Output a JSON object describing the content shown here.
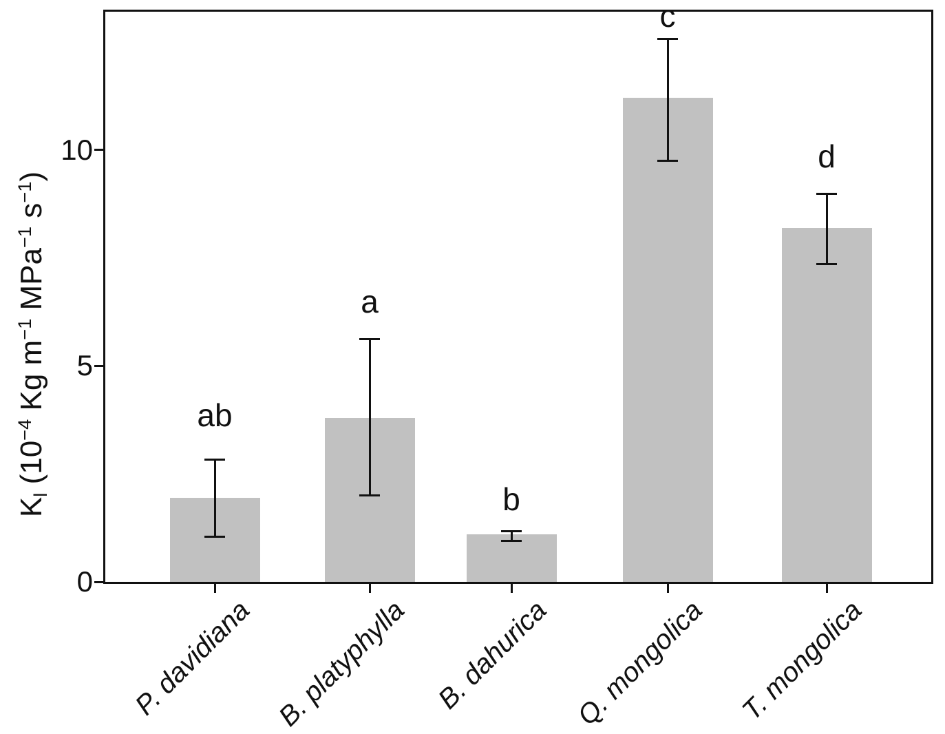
{
  "chart_data": {
    "type": "bar",
    "categories": [
      "P. davidiana",
      "B. platyphylla",
      "B. dahurica",
      "Q. mongolica",
      "T. mongolica"
    ],
    "values": [
      1.95,
      3.8,
      1.1,
      11.2,
      8.2
    ],
    "error_upper": [
      2.85,
      5.65,
      1.2,
      12.6,
      9.0
    ],
    "error_lower": [
      1.05,
      2.0,
      0.95,
      9.75,
      7.35
    ],
    "significance_letters": [
      "ab",
      "a",
      "b",
      "c",
      "d"
    ],
    "title": "",
    "xlabel": "",
    "ylabel": "Kl (10^-4 Kg m^-1 MPa^-1 s^-1)",
    "ylabel_parts": [
      {
        "text": "K",
        "style": "normal"
      },
      {
        "text": "l",
        "style": "sub"
      },
      {
        "text": " (10",
        "style": "normal"
      },
      {
        "text": "−4",
        "style": "sup"
      },
      {
        "text": " Kg m",
        "style": "normal"
      },
      {
        "text": "−1",
        "style": "sup"
      },
      {
        "text": " MPa",
        "style": "normal"
      },
      {
        "text": "−1",
        "style": "sup"
      },
      {
        "text": " s",
        "style": "normal"
      },
      {
        "text": "−1",
        "style": "sup"
      },
      {
        "text": ")",
        "style": "normal"
      }
    ],
    "yticks": [
      "0",
      "5",
      "10"
    ],
    "ytick_values": [
      0,
      5,
      10
    ],
    "ylim": [
      0,
      13.2
    ],
    "grid": false,
    "legend": false,
    "x_tick_label_style": "italic-45deg",
    "bar_color": "#c1c1c1",
    "axis_color": "#111111",
    "error_bar_color": "#111111",
    "text_color": "#111111"
  }
}
